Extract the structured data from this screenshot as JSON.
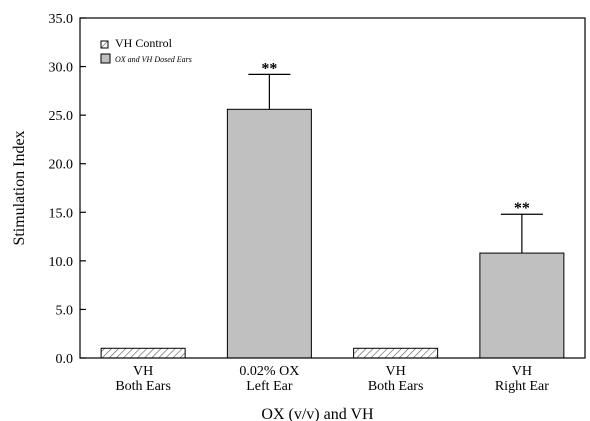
{
  "chart_data": {
    "type": "bar",
    "categories": [
      [
        "VH",
        "Both Ears"
      ],
      [
        "0.02% OX",
        "Left Ear"
      ],
      [
        "VH",
        "Both Ears"
      ],
      [
        "VH",
        "Right Ear"
      ]
    ],
    "values": [
      1.0,
      25.6,
      1.0,
      10.8
    ],
    "errors": [
      0,
      3.6,
      0,
      4.0
    ],
    "significance": [
      "",
      "**",
      "",
      "**"
    ],
    "bar_style": [
      "hatched",
      "solid",
      "hatched",
      "solid"
    ],
    "xlabel": "OX (v/v) and VH",
    "ylabel": "Stimulation Index",
    "ylim": [
      0,
      35
    ],
    "yticks": [
      "0.0",
      "5.0",
      "10.0",
      "15.0",
      "20.0",
      "25.0",
      "30.0",
      "35.0"
    ],
    "legend": {
      "position": "top-left",
      "entries": [
        {
          "label": "VH  Control",
          "style": "hatched"
        },
        {
          "label": "OX and VH Dosed Ears",
          "style": "solid"
        }
      ]
    },
    "colors": {
      "solid": "#c0c0c0",
      "hatch": "#555555",
      "axis": "#000000"
    }
  }
}
